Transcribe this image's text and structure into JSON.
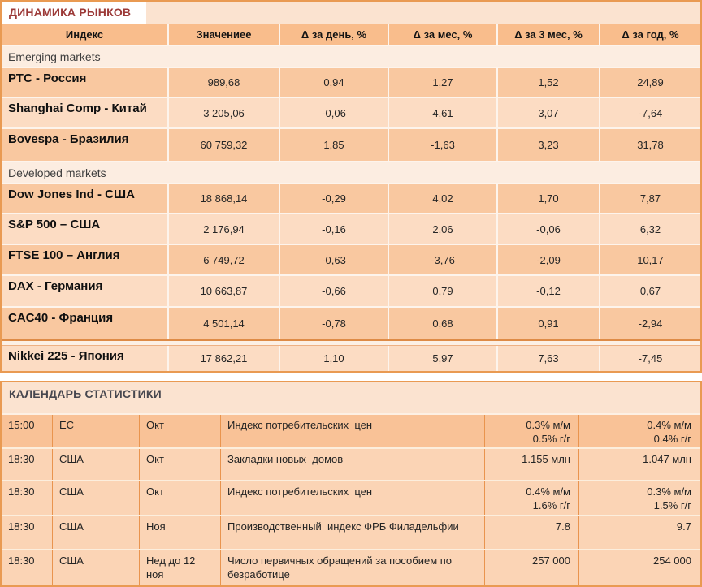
{
  "markets_table": {
    "title": "ДИНАМИКА РЫНКОВ",
    "columns": [
      "Индекс",
      "Значениее",
      "Δ за день, %",
      "Δ за мес, %",
      "Δ за 3 мес, %",
      "Δ за год, %"
    ],
    "sections": [
      {
        "label": "Emerging markets",
        "rows": [
          {
            "index": "РТС - Россия",
            "value": "989,68",
            "d_day": "0,94",
            "d_month": "1,27",
            "d_3month": "1,52",
            "d_year": "24,89"
          },
          {
            "index": "Shanghai Comp - Китай",
            "value": "3 205,06",
            "d_day": "-0,06",
            "d_month": "4,61",
            "d_3month": "3,07",
            "d_year": "-7,64"
          },
          {
            "index": "Bovespa - Бразилия",
            "value": "60 759,32",
            "d_day": "1,85",
            "d_month": "-1,63",
            "d_3month": "3,23",
            "d_year": "31,78"
          }
        ]
      },
      {
        "label": "Developed markets",
        "rows": [
          {
            "index": "Dow Jones Ind - США",
            "value": "18 868,14",
            "d_day": "-0,29",
            "d_month": "4,02",
            "d_3month": "1,70",
            "d_year": "7,87"
          },
          {
            "index": "S&P 500 – США",
            "value": "2 176,94",
            "d_day": "-0,16",
            "d_month": "2,06",
            "d_3month": "-0,06",
            "d_year": "6,32"
          },
          {
            "index": "FTSE 100 – Англия",
            "value": "6 749,72",
            "d_day": "-0,63",
            "d_month": "-3,76",
            "d_3month": "-2,09",
            "d_year": "10,17"
          },
          {
            "index": "DAX - Германия",
            "value": "10 663,87",
            "d_day": "-0,66",
            "d_month": "0,79",
            "d_3month": "-0,12",
            "d_year": "0,67"
          },
          {
            "index": "CAC40 - Франция",
            "value": "4 501,14",
            "d_day": "-0,78",
            "d_month": "0,68",
            "d_3month": "0,91",
            "d_year": "-2,94"
          },
          {
            "index": "Nikkei 225 - Япония",
            "value": "17 862,21",
            "d_day": "1,10",
            "d_month": "5,97",
            "d_3month": "7,63",
            "d_year": "-7,45"
          }
        ]
      }
    ]
  },
  "calendar_table": {
    "title": "КАЛЕНДАРЬ СТАТИСТИКИ",
    "rows": [
      {
        "time": "15:00",
        "region": "ЕС",
        "period": "Окт",
        "event": "Индекс потребительских  цен",
        "forecast": "0.3% м/м\n0.5% г/г",
        "previous": "0.4% м/м\n0.4% г/г"
      },
      {
        "time": "18:30",
        "region": "США",
        "period": "Окт",
        "event": "Закладки новых  домов",
        "forecast": "1.155 млн",
        "previous": "1.047 млн"
      },
      {
        "time": "18:30",
        "region": "США",
        "period": "Окт",
        "event": "Индекс потребительских  цен",
        "forecast": "0.4% м/м\n1.6% г/г",
        "previous": "0.3% м/м\n1.5% г/г"
      },
      {
        "time": "18:30",
        "region": "США",
        "period": "Ноя",
        "event": "Производственный  индекс ФРБ Филадельфии",
        "forecast": "7.8",
        "previous": "9.7"
      },
      {
        "time": "18:30",
        "region": "США",
        "period": "Нед до 12 ноя",
        "event": "Число первичных обращений за пособием по безработице",
        "forecast": "257 000",
        "previous": "254 000"
      }
    ]
  },
  "colors": {
    "outer_border_orange": "#e99a52",
    "header_row_orange": "#f9bd8c",
    "row_dark_peach": "#f9c8a0",
    "row_light_peach": "#fcdcc3",
    "section_row_cream": "#fcede1",
    "title_band_peach": "#fbe3d0",
    "calendar_row_dark": "#f9c297",
    "calendar_row_light": "#fbd4b5",
    "markets_title_maroon": "#9c3a38",
    "calendar_title_slate": "#47474f"
  }
}
